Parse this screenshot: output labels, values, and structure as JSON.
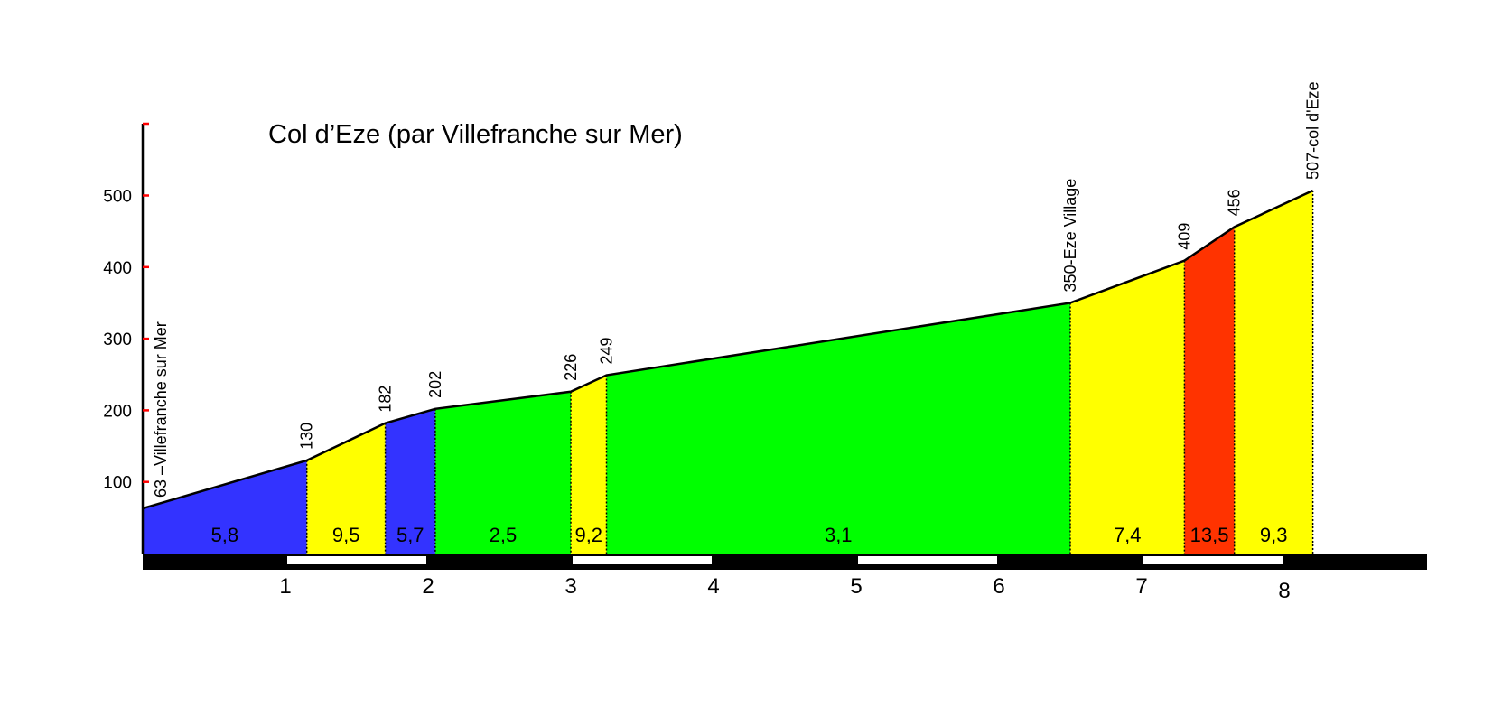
{
  "chart_data": {
    "type": "area",
    "title": "Col d’Eze (par Villefranche sur Mer)",
    "xlabel": "",
    "ylabel": "",
    "xlim": [
      0,
      9
    ],
    "ylim": [
      0,
      600
    ],
    "y_ticks": [
      100,
      200,
      300,
      400,
      500
    ],
    "x_ticks": [
      1,
      2,
      3,
      4,
      5,
      6,
      7,
      8
    ],
    "grid": false,
    "profile": [
      {
        "km": 0.0,
        "alt": 63
      },
      {
        "km": 1.15,
        "alt": 130
      },
      {
        "km": 1.7,
        "alt": 182
      },
      {
        "km": 2.05,
        "alt": 202
      },
      {
        "km": 3.0,
        "alt": 226
      },
      {
        "km": 3.25,
        "alt": 249
      },
      {
        "km": 6.5,
        "alt": 350
      },
      {
        "km": 7.3,
        "alt": 409
      },
      {
        "km": 7.65,
        "alt": 456
      },
      {
        "km": 8.2,
        "alt": 507
      }
    ],
    "segments": [
      {
        "from": 0.0,
        "to": 1.15,
        "grade": "5,8",
        "color": "#3333ff"
      },
      {
        "from": 1.15,
        "to": 1.7,
        "grade": "9,5",
        "color": "#ffff00"
      },
      {
        "from": 1.7,
        "to": 2.05,
        "grade": "5,7",
        "color": "#3333ff"
      },
      {
        "from": 2.05,
        "to": 3.0,
        "grade": "2,5",
        "color": "#00ff00"
      },
      {
        "from": 3.0,
        "to": 3.25,
        "grade": "9,2",
        "color": "#ffff00"
      },
      {
        "from": 3.25,
        "to": 6.5,
        "grade": "3,1",
        "color": "#00ff00"
      },
      {
        "from": 6.5,
        "to": 7.3,
        "grade": "7,4",
        "color": "#ffff00"
      },
      {
        "from": 7.3,
        "to": 7.65,
        "grade": "13,5",
        "color": "#ff3300"
      },
      {
        "from": 7.65,
        "to": 8.2,
        "grade": "9,3",
        "color": "#ffff00"
      }
    ],
    "point_labels": [
      {
        "km": 0.0,
        "text": "63 –Villefranche sur Mer"
      },
      {
        "km": 1.15,
        "text": "130"
      },
      {
        "km": 1.7,
        "text": "182"
      },
      {
        "km": 2.05,
        "text": "202"
      },
      {
        "km": 3.0,
        "text": "226"
      },
      {
        "km": 3.25,
        "text": "249"
      },
      {
        "km": 6.5,
        "text": "350-Eze Village"
      },
      {
        "km": 7.3,
        "text": "409"
      },
      {
        "km": 7.65,
        "text": "456"
      },
      {
        "km": 8.2,
        "text": "507-col d'Eze"
      }
    ],
    "colors": {
      "axis": "#000000",
      "tick_mark": "#ff0000",
      "km_bar_white": "#ffffff",
      "km_bar_black": "#000000"
    }
  }
}
